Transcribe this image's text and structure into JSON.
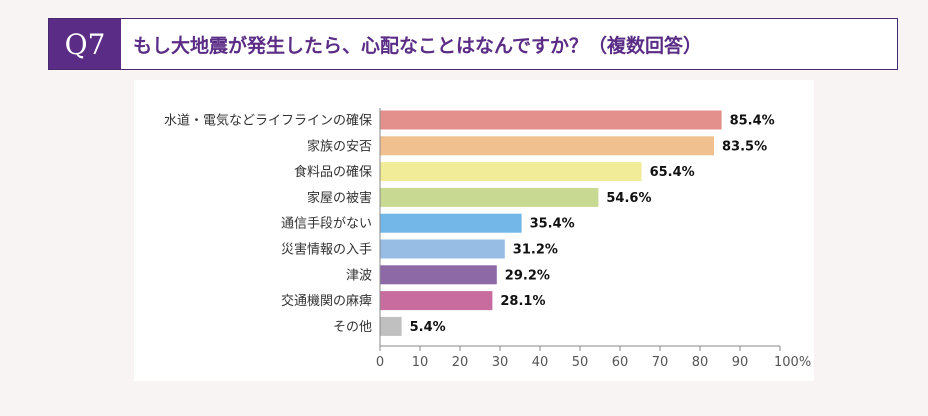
{
  "header": {
    "badge": "Q7",
    "question": "もし大地震が発生したら、心配なことはなんですか？（複数回答）"
  },
  "chart_data": {
    "type": "bar",
    "orientation": "horizontal",
    "categories": [
      "水道・電気などライフラインの確保",
      "家族の安否",
      "食料品の確保",
      "家屋の被害",
      "通信手段がない",
      "災害情報の入手",
      "津波",
      "交通機関の麻痺",
      "その他"
    ],
    "values": [
      85.4,
      83.5,
      65.4,
      54.6,
      35.4,
      31.2,
      29.2,
      28.1,
      5.4
    ],
    "value_labels": [
      "85.4%",
      "83.5%",
      "65.4%",
      "54.6%",
      "35.4%",
      "31.2%",
      "29.2%",
      "28.1%",
      "5.4%"
    ],
    "colors": [
      "#e3908c",
      "#f0c08e",
      "#f1ec97",
      "#c8da92",
      "#72b7e7",
      "#97bde5",
      "#8d6aa6",
      "#c86b9e",
      "#c0c0c0"
    ],
    "xlim": [
      0,
      100
    ],
    "ticks": [
      "0",
      "10",
      "20",
      "30",
      "40",
      "50",
      "60",
      "70",
      "80",
      "90",
      "100%"
    ],
    "grid": false
  }
}
